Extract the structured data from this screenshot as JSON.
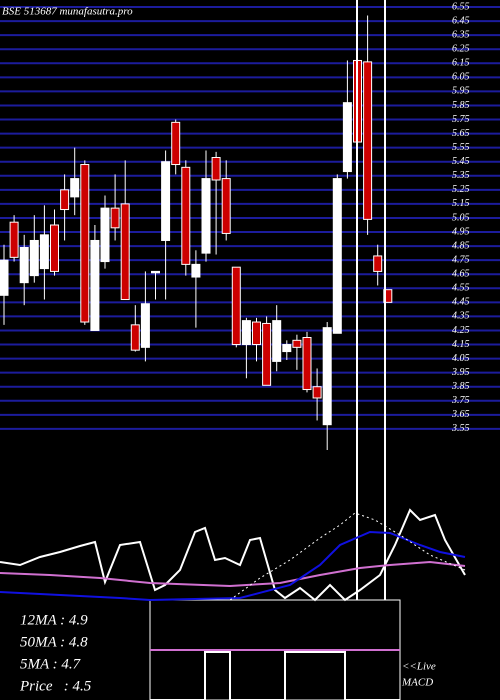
{
  "chart_data": [
    {
      "type": "candlestick",
      "title": "BSE 513687 munafasutra.pro",
      "annotations": [
        "12MA : 4.9",
        "50MA : 4.8",
        "5MA : 4.7",
        "Price   : 4.5"
      ],
      "open": [
        4.5,
        5.02,
        4.59,
        4.64,
        4.69,
        5.0,
        5.25,
        5.2,
        5.43,
        4.25,
        4.74,
        5.12,
        5.15,
        4.29,
        4.13,
        4.66,
        4.89,
        5.73,
        5.41,
        4.63,
        4.8,
        5.48,
        5.33,
        4.7,
        4.15,
        4.31,
        4.3,
        4.03,
        4.1,
        4.18,
        4.2,
        3.85,
        3.58,
        4.23,
        5.38,
        6.17,
        6.16,
        4.78,
        4.54
      ],
      "high": [
        4.86,
        5.07,
        4.93,
        5.07,
        5.14,
        5.11,
        5.36,
        5.55,
        5.46,
        5.0,
        5.21,
        5.36,
        5.46,
        4.43,
        4.67,
        4.67,
        5.53,
        5.75,
        5.46,
        4.82,
        5.53,
        5.52,
        5.46,
        4.7,
        4.34,
        4.34,
        4.35,
        4.43,
        4.18,
        4.22,
        4.24,
        3.98,
        4.31,
        5.36,
        6.17,
        6.24,
        6.49,
        4.86,
        4.54
      ],
      "low": [
        4.29,
        4.74,
        4.43,
        4.59,
        4.47,
        4.64,
        4.89,
        5.07,
        4.29,
        4.25,
        4.69,
        4.89,
        4.47,
        4.1,
        4.03,
        4.47,
        4.47,
        5.36,
        4.64,
        4.27,
        4.74,
        4.79,
        4.89,
        4.13,
        3.91,
        4.03,
        3.86,
        3.96,
        4.04,
        3.97,
        3.81,
        3.61,
        3.4,
        4.23,
        5.33,
        5.59,
        4.93,
        4.57,
        4.45
      ],
      "close": [
        4.75,
        4.77,
        4.84,
        4.89,
        4.93,
        4.67,
        5.11,
        5.33,
        4.31,
        4.89,
        5.12,
        4.98,
        4.47,
        4.11,
        4.44,
        4.67,
        5.45,
        5.43,
        4.72,
        4.72,
        5.33,
        5.32,
        4.94,
        4.15,
        4.32,
        4.15,
        3.86,
        4.32,
        4.15,
        4.13,
        3.83,
        3.77,
        4.27,
        5.33,
        5.87,
        5.59,
        5.04,
        4.67,
        4.45
      ],
      "up_color": "#ffffff",
      "down_color": "#cc0000",
      "grid_color": "#1c1c9c",
      "ylim": [
        3.4,
        6.6
      ],
      "yticks": [
        6.55,
        6.45,
        6.35,
        6.25,
        6.15,
        6.05,
        5.95,
        5.85,
        5.75,
        5.65,
        5.55,
        5.45,
        5.35,
        5.25,
        5.15,
        5.05,
        4.95,
        4.85,
        4.75,
        4.65,
        4.55,
        4.45,
        4.35,
        4.25,
        4.15,
        4.05,
        3.95,
        3.85,
        3.75,
        3.65,
        3.55
      ],
      "grid": true
    },
    {
      "type": "line",
      "xlim": [
        0,
        500
      ],
      "ylim": [
        0,
        100
      ],
      "series": [
        {
          "color": "#ffffff",
          "dash": false,
          "x": [
            0,
            20,
            40,
            60,
            80,
            95,
            105,
            120,
            140,
            155,
            165,
            180,
            195,
            205,
            215,
            225,
            240,
            250,
            260,
            275,
            285,
            300,
            315,
            330,
            345,
            360,
            380,
            395,
            410,
            420,
            435,
            445,
            465
          ],
          "values": [
            38,
            35,
            43,
            48,
            54,
            58,
            18,
            55,
            58,
            10,
            15,
            30,
            68,
            72,
            40,
            42,
            35,
            60,
            62,
            10,
            2,
            12,
            0,
            15,
            0,
            10,
            25,
            55,
            90,
            80,
            85,
            60,
            25
          ]
        },
        {
          "color": "#d070d0",
          "dash": false,
          "x": [
            0,
            50,
            100,
            150,
            230,
            280,
            320,
            360,
            390,
            430,
            465
          ],
          "values": [
            27,
            25,
            22,
            17,
            14,
            17,
            25,
            32,
            35,
            38,
            34
          ]
        },
        {
          "color": "#1010e0",
          "dash": false,
          "x": [
            0,
            120,
            150,
            240,
            290,
            320,
            340,
            370,
            390,
            420,
            440,
            465
          ],
          "values": [
            8,
            2,
            0,
            2,
            15,
            35,
            55,
            68,
            67,
            55,
            48,
            43
          ]
        },
        {
          "color": "#ffffff",
          "dash": true,
          "x": [
            230,
            260,
            290,
            320,
            340,
            355,
            375,
            400,
            430,
            465
          ],
          "values": [
            0,
            22,
            40,
            62,
            75,
            87,
            80,
            65,
            45,
            30
          ]
        }
      ]
    },
    {
      "type": "line",
      "title": "MACD",
      "annotations": [
        "<<Live"
      ],
      "xlim": [
        150,
        400
      ],
      "ylim": [
        0,
        100
      ],
      "series": [
        {
          "color": "#d070d0",
          "dash": false,
          "x": [
            150,
            400
          ],
          "values": [
            50,
            50
          ]
        },
        {
          "color": "#ffffff",
          "dash": false,
          "x": [
            150,
            205,
            205,
            230,
            230,
            285,
            285,
            345,
            345,
            400
          ],
          "values": [
            0,
            0,
            48,
            48,
            0,
            0,
            48,
            48,
            0,
            0
          ]
        }
      ]
    }
  ]
}
